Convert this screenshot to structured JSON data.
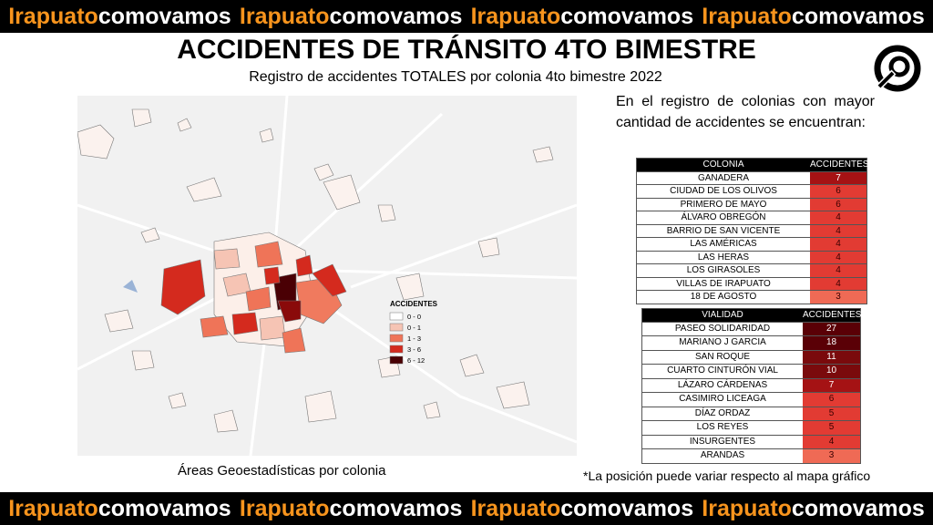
{
  "banner": {
    "brand": "Irapuato",
    "suffix": "comovamos"
  },
  "header": {
    "title": "ACCIDENTES DE TRÁNSITO 4TO BIMESTRE",
    "subtitle": "Registro de accidentes TOTALES por colonia 4to bimestre 2022"
  },
  "map": {
    "legend": {
      "title": "ACCIDENTES",
      "items": [
        {
          "label": "0 - 0",
          "color": "#ffffff"
        },
        {
          "label": "0 - 1",
          "color": "#f6c4b4"
        },
        {
          "label": "1 - 3",
          "color": "#ef7458"
        },
        {
          "label": "3 - 6",
          "color": "#d42a1e"
        },
        {
          "label": "6 - 12",
          "color": "#4a0004"
        }
      ]
    },
    "caption": "Áreas Geoestadísticas por colonia"
  },
  "intro": "En el registro de colonias con mayor cantidad de accidentes se encuentran:",
  "colonias": {
    "header": [
      "COLONIA",
      "ACCIDENTES"
    ],
    "rows": [
      [
        "GANADERA",
        7
      ],
      [
        "CIUDAD DE LOS OLIVOS",
        6
      ],
      [
        "PRIMERO DE MAYO",
        6
      ],
      [
        "ÁLVARO OBREGÓN",
        4
      ],
      [
        "BARRIO DE SAN VICENTE",
        4
      ],
      [
        "LAS AMÉRICAS",
        4
      ],
      [
        "LAS HERAS",
        4
      ],
      [
        "LOS GIRASOLES",
        4
      ],
      [
        "VILLAS DE IRAPUATO",
        4
      ],
      [
        "18 DE AGOSTO",
        3
      ]
    ]
  },
  "vialidades": {
    "header": [
      "VIALIDAD",
      "ACCIDENTES"
    ],
    "rows": [
      [
        "PASEO SOLIDARIDAD",
        27
      ],
      [
        "MARIANO J GARCIA",
        18
      ],
      [
        "SAN ROQUE",
        11
      ],
      [
        "CUARTO CINTURÓN VIAL",
        10
      ],
      [
        "LÁZARO CÁRDENAS",
        7
      ],
      [
        "CASIMIRO LICEAGA",
        6
      ],
      [
        "DÍAZ ORDAZ",
        5
      ],
      [
        "LOS REYES",
        5
      ],
      [
        "INSURGENTES",
        4
      ],
      [
        "ARANDAS",
        3
      ]
    ]
  },
  "note": "*La posición puede variar respecto al mapa gráfico"
}
